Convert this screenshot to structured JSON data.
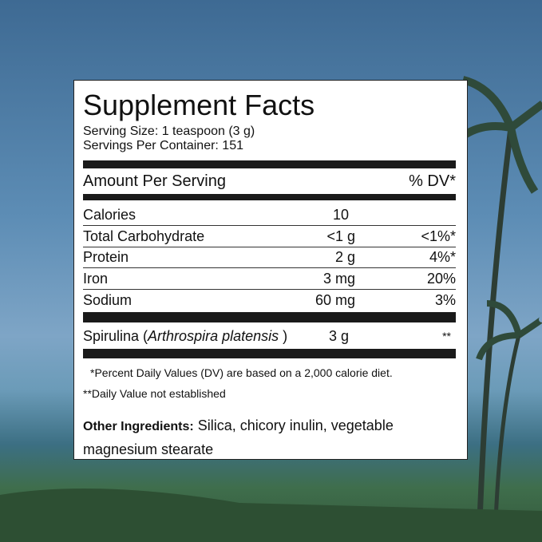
{
  "label": {
    "title": "Supplement Facts",
    "serving_size": "Serving Size: 1 teaspoon (3 g)",
    "servings_per_container": "Servings Per Container:  151",
    "header": {
      "amount": "Amount Per Serving",
      "dv": "% DV*"
    },
    "rows": [
      [
        "Calories",
        "10",
        ""
      ],
      [
        "Total Carbohydrate",
        "<1 g",
        "<1%*"
      ],
      [
        "Protein",
        "2 g",
        "4%*"
      ],
      [
        "Iron",
        "3 mg",
        "20%"
      ],
      [
        "Sodium",
        "60 mg",
        "3%"
      ]
    ],
    "spirulina": {
      "name": "Spirulina (",
      "latin": "Arthrospira platensis",
      "close": ")",
      "amount": "3 g",
      "dv": "**"
    },
    "footnotes": [
      "*Percent Daily Values (DV) are based on a 2,000 calorie diet.",
      "**Daily Value not established"
    ],
    "other_ingredients": {
      "label": "Other Ingredients:",
      "text": "Silica, chicory inulin, vegetable magnesium stearate"
    }
  }
}
